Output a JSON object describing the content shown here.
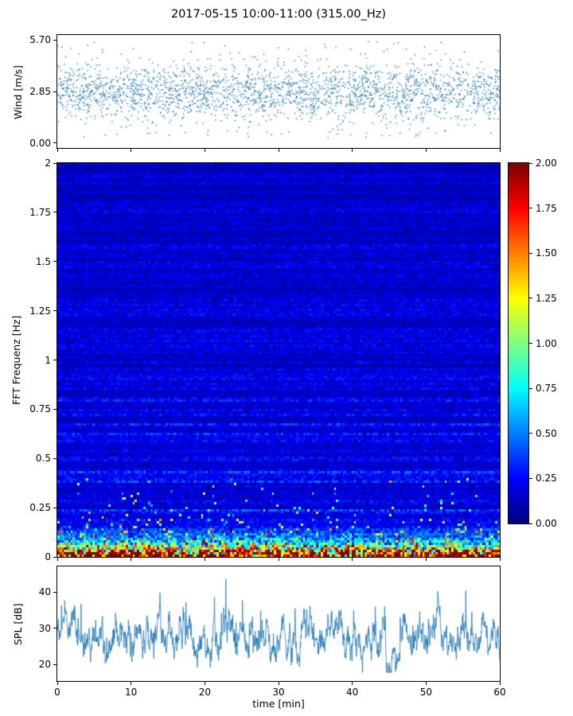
{
  "title": "2017-05-15 10:00-11:00 (315.00_Hz)",
  "colors": {
    "accent": "#1f77b4",
    "axis": "#000000"
  },
  "chart_data": [
    {
      "type": "scatter",
      "name": "wind-speed",
      "ylabel": "Wind [m/s]",
      "xlim": [
        0,
        60
      ],
      "ylim": [
        0.0,
        5.7
      ],
      "yticks": {
        "values": [
          0.0,
          2.85,
          5.7
        ],
        "labels": [
          "0.00",
          "2.85",
          "5.70"
        ]
      },
      "xticks": {
        "values": [
          0,
          10,
          20,
          30,
          40,
          50,
          60
        ],
        "labels": []
      },
      "marker_color": "#1f77b4",
      "synthesis": {
        "n_points": 2600,
        "mean": 2.9,
        "std": 0.72,
        "low_outlier_frac": 0.05,
        "high_outlier_frac": 0.015,
        "clip": [
          0.12,
          5.69
        ],
        "seed": 42
      }
    },
    {
      "type": "heatmap",
      "name": "fft-spectrogram",
      "ylabel": "FFT Frequenz [Hz]",
      "xlim": [
        0,
        60
      ],
      "ylim": [
        0,
        2
      ],
      "yticks": {
        "values": [
          0,
          0.25,
          0.5,
          0.75,
          1,
          1.25,
          1.5,
          1.75,
          2
        ],
        "labels": [
          "0",
          "0.25",
          "0.5",
          "0.75",
          "1",
          "1.25",
          "1.5",
          "1.75",
          "2"
        ]
      },
      "xticks": {
        "values": [
          0,
          10,
          20,
          30,
          40,
          50,
          60
        ],
        "labels": []
      },
      "colormap": "jet",
      "value_range": [
        0,
        2
      ],
      "colorbar": {
        "range": [
          0,
          2
        ],
        "ticks": {
          "values": [
            0,
            0.25,
            0.5,
            0.75,
            1,
            1.25,
            1.5,
            1.75,
            2
          ],
          "labels": [
            "0.00",
            "0.25",
            "0.50",
            "0.75",
            "1.00",
            "1.25",
            "1.50",
            "1.75",
            "2.00"
          ]
        }
      },
      "synthesis": {
        "rows": 165,
        "cols": 200,
        "background_base": 0.12,
        "background_var": 0.15,
        "low_boost": 2.6,
        "low_decay_hz": 0.05,
        "speckle_band_hz": 0.4,
        "speckle_prob": 0.22,
        "speckle_decay_hz": 0.13,
        "seed": 1234
      }
    },
    {
      "type": "line",
      "name": "spl",
      "ylabel": "SPL [dB]",
      "xlabel": "time [min]",
      "xlim": [
        0,
        60
      ],
      "ylim": [
        15.5,
        47
      ],
      "yticks": {
        "values": [
          20,
          30,
          40
        ],
        "labels": [
          "20",
          "30",
          "40"
        ]
      },
      "xticks": {
        "values": [
          0,
          10,
          20,
          30,
          40,
          50,
          60
        ],
        "labels": [
          "0",
          "10",
          "20",
          "30",
          "40",
          "50",
          "60"
        ]
      },
      "line_color": "#1f77b4",
      "synthesis": {
        "n_points": 1600,
        "mean": 27.5,
        "ar_coeff": 0.92,
        "ar_noise": 1.55,
        "spike_prob": 0.012,
        "spike_min": 7,
        "spike_max": 18,
        "jitter": 0.9,
        "clip": [
          17.8,
          46
        ],
        "seed": 7
      }
    }
  ]
}
